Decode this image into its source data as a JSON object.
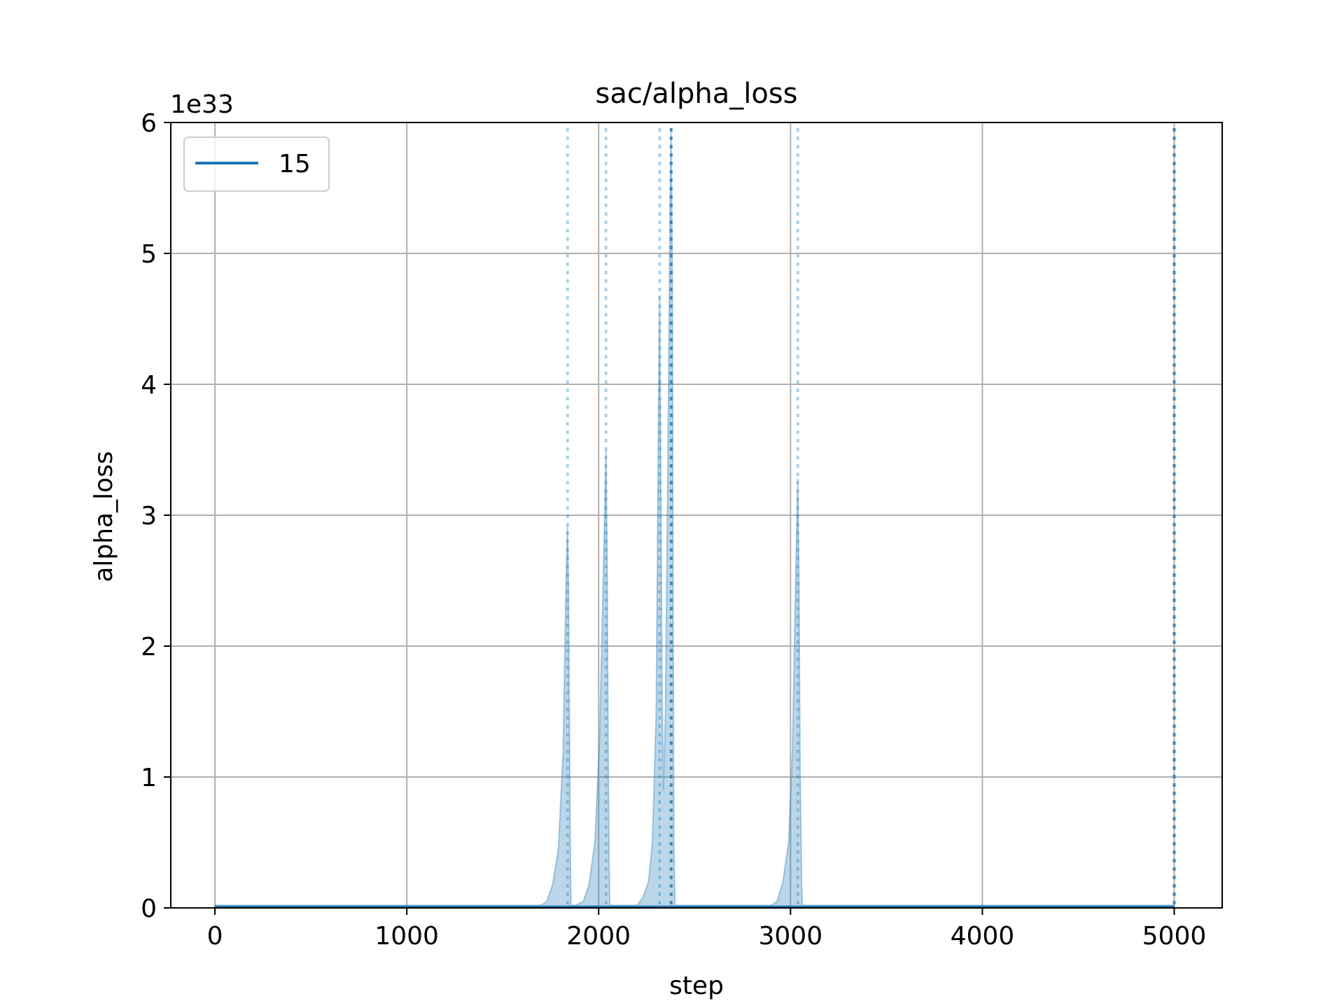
{
  "chart_data": {
    "type": "area",
    "title": "sac/alpha_loss",
    "xlabel": "step",
    "ylabel": "alpha_loss",
    "y_offset_text": "1e33",
    "y_multiplier": 1e+33,
    "xlim": [
      -230,
      5250
    ],
    "ylim": [
      0,
      6
    ],
    "xticks": [
      0,
      1000,
      2000,
      3000,
      4000,
      5000
    ],
    "yticks": [
      0,
      1,
      2,
      3,
      4,
      5,
      6
    ],
    "grid": true,
    "legend": {
      "position": "top-left",
      "entries": [
        {
          "label": "15",
          "color": "#1f77b4"
        }
      ]
    },
    "series": [
      {
        "name": "15",
        "color": "#1f77b4",
        "fill_color": "#1f77b4",
        "mean": [
          [
            0,
            0.01
          ],
          [
            1700,
            0.01
          ],
          [
            5000,
            0.01
          ]
        ],
        "upper_band": [
          [
            0,
            0.02
          ],
          [
            1700,
            0.02
          ],
          [
            1730,
            0.05
          ],
          [
            1760,
            0.18
          ],
          [
            1790,
            0.45
          ],
          [
            1815,
            1.2
          ],
          [
            1830,
            2.5
          ],
          [
            1838,
            2.92
          ],
          [
            1843,
            2.4
          ],
          [
            1848,
            1.4
          ],
          [
            1853,
            0.35
          ],
          [
            1856,
            0.02
          ],
          [
            1880,
            0.02
          ],
          [
            1920,
            0.05
          ],
          [
            1950,
            0.18
          ],
          [
            1980,
            0.5
          ],
          [
            2005,
            1.3
          ],
          [
            2025,
            2.6
          ],
          [
            2038,
            3.5
          ],
          [
            2044,
            2.7
          ],
          [
            2050,
            1.2
          ],
          [
            2055,
            0.3
          ],
          [
            2058,
            0.02
          ],
          [
            2200,
            0.02
          ],
          [
            2230,
            0.08
          ],
          [
            2260,
            0.2
          ],
          [
            2280,
            0.5
          ],
          [
            2300,
            1.5
          ],
          [
            2312,
            3.8
          ],
          [
            2318,
            4.68
          ],
          [
            2323,
            3.6
          ],
          [
            2330,
            1.8
          ],
          [
            2338,
            0.9
          ],
          [
            2348,
            1.5
          ],
          [
            2362,
            3.6
          ],
          [
            2372,
            5.4
          ],
          [
            2378,
            5.96
          ],
          [
            2384,
            4.8
          ],
          [
            2392,
            0.5
          ],
          [
            2398,
            0.02
          ],
          [
            2900,
            0.02
          ],
          [
            2930,
            0.05
          ],
          [
            2960,
            0.2
          ],
          [
            2990,
            0.5
          ],
          [
            3010,
            1.2
          ],
          [
            3028,
            2.6
          ],
          [
            3038,
            3.28
          ],
          [
            3044,
            2.5
          ],
          [
            3050,
            1.1
          ],
          [
            3058,
            0.2
          ],
          [
            3062,
            0.02
          ],
          [
            5000,
            0.02
          ]
        ],
        "vlines_light": [
          1838,
          2038,
          2318,
          3038
        ],
        "vlines_dark": [
          2378,
          5000
        ]
      }
    ]
  }
}
